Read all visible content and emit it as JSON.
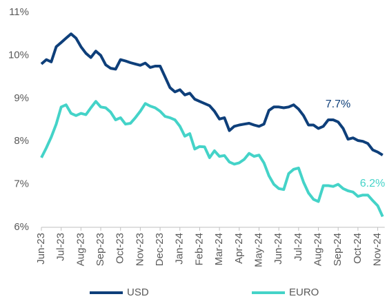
{
  "chart_data": {
    "type": "line",
    "categories": [
      "Jun-23",
      null,
      null,
      null,
      "Jul-23",
      null,
      null,
      null,
      "Aug-23",
      null,
      null,
      null,
      "Sep-23",
      null,
      null,
      null,
      "Oct-23",
      null,
      null,
      null,
      "Nov-23",
      null,
      null,
      null,
      "Dec-23",
      null,
      null,
      null,
      "Jan-24",
      null,
      null,
      null,
      "Feb-24",
      null,
      null,
      null,
      "Mar-24",
      null,
      null,
      null,
      "Apr-24",
      null,
      null,
      null,
      "May-24",
      null,
      null,
      null,
      "Jun-24",
      null,
      null,
      null,
      "Jul-24",
      null,
      null,
      null,
      "Aug-24",
      null,
      null,
      null,
      "Sep-24",
      null,
      null,
      null,
      "Oct-24",
      null,
      null,
      null,
      "Nov-24",
      null
    ],
    "series": [
      {
        "name": "USD",
        "color": "#0e3f7a",
        "values": [
          9.8,
          9.9,
          9.85,
          10.2,
          10.3,
          10.4,
          10.5,
          10.4,
          10.2,
          10.05,
          9.95,
          10.1,
          10.0,
          9.78,
          9.7,
          9.68,
          9.9,
          9.87,
          9.83,
          9.8,
          9.77,
          9.82,
          9.72,
          9.75,
          9.75,
          9.5,
          9.25,
          9.15,
          9.2,
          9.08,
          9.12,
          8.98,
          8.93,
          8.88,
          8.83,
          8.7,
          8.52,
          8.55,
          8.25,
          8.35,
          8.38,
          8.4,
          8.42,
          8.38,
          8.35,
          8.4,
          8.72,
          8.8,
          8.8,
          8.78,
          8.8,
          8.85,
          8.75,
          8.6,
          8.38,
          8.38,
          8.3,
          8.35,
          8.5,
          8.5,
          8.45,
          8.3,
          8.05,
          8.08,
          8.02,
          8.0,
          7.95,
          7.8,
          7.75,
          7.68
        ]
      },
      {
        "name": "EURO",
        "color": "#44d3c8",
        "values": [
          7.62,
          7.85,
          8.1,
          8.4,
          8.8,
          8.85,
          8.65,
          8.6,
          8.65,
          8.62,
          8.78,
          8.93,
          8.8,
          8.78,
          8.68,
          8.5,
          8.55,
          8.4,
          8.42,
          8.55,
          8.7,
          8.88,
          8.82,
          8.78,
          8.7,
          8.58,
          8.55,
          8.5,
          8.35,
          8.12,
          8.18,
          7.82,
          7.88,
          7.87,
          7.62,
          7.78,
          7.65,
          7.67,
          7.52,
          7.47,
          7.5,
          7.58,
          7.72,
          7.65,
          7.68,
          7.5,
          7.2,
          7.0,
          6.9,
          6.88,
          7.25,
          7.35,
          7.38,
          7.05,
          6.8,
          6.65,
          6.6,
          6.97,
          6.97,
          6.95,
          7.0,
          6.9,
          6.85,
          6.82,
          6.72,
          6.75,
          6.75,
          6.62,
          6.5,
          6.25
        ]
      }
    ],
    "ylim": [
      6,
      11
    ],
    "yticks": [
      {
        "value": 6,
        "label": "6%"
      },
      {
        "value": 7,
        "label": "7%"
      },
      {
        "value": 8,
        "label": "8%"
      },
      {
        "value": 9,
        "label": "9%"
      },
      {
        "value": 10,
        "label": "10%"
      },
      {
        "value": 11,
        "label": "11%"
      }
    ],
    "annotations": [
      {
        "text": "7.7%",
        "series": 0
      },
      {
        "text": "6.2%",
        "series": 1
      }
    ],
    "grid": false,
    "legend": "bottom"
  }
}
